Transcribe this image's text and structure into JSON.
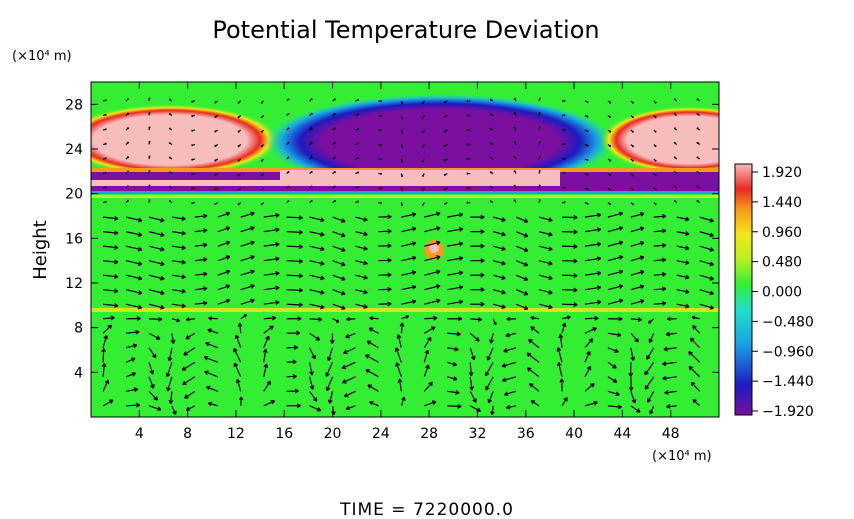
{
  "chart_data": {
    "type": "heatmap",
    "title": "Potential Temperature Deviation",
    "xlabel": "",
    "ylabel": "Height",
    "x_unit": "(×10⁴ m)",
    "y_unit": "(×10⁴ m)",
    "xlim": [
      0,
      52
    ],
    "ylim": [
      0,
      30
    ],
    "x_ticks": [
      4,
      8,
      12,
      16,
      20,
      24,
      28,
      32,
      36,
      40,
      44,
      48
    ],
    "y_ticks": [
      4,
      8,
      12,
      16,
      20,
      24,
      28
    ],
    "x_tick_labels": [
      "4",
      "8",
      "12",
      "16",
      "20",
      "24",
      "28",
      "32",
      "36",
      "40",
      "44",
      "48"
    ],
    "y_tick_labels": [
      "4",
      "8",
      "12",
      "16",
      "20",
      "24",
      "28"
    ],
    "colorbar": {
      "min": -1.92,
      "max": 1.92,
      "labels": [
        "1.920",
        "1.440",
        "0.960",
        "0.480",
        "0.000",
        "−0.480",
        "−0.960",
        "−1.440",
        "−1.920"
      ],
      "colormap": [
        "#7a0fa0",
        "#1c1cbf",
        "#1aa0e6",
        "#20e0c8",
        "#33ee33",
        "#b8f020",
        "#f5e619",
        "#f59a1a",
        "#e82a20",
        "#f7bcbc"
      ]
    },
    "features": [
      {
        "kind": "positive-anomaly",
        "x_range": [
          0,
          14
        ],
        "y_range": [
          23,
          27
        ],
        "value": 1.9
      },
      {
        "kind": "negative-anomaly",
        "x_range": [
          19,
          38
        ],
        "y_range": [
          22,
          28
        ],
        "value": -1.9
      },
      {
        "kind": "positive-anomaly",
        "x_range": [
          43,
          52
        ],
        "y_range": [
          23,
          27
        ],
        "value": 1.9
      },
      {
        "kind": "layer-mixed",
        "x_range": [
          0,
          52
        ],
        "y_range": [
          19.5,
          22.5
        ],
        "value": 0
      },
      {
        "kind": "thin-positive-layer",
        "x_range": [
          0,
          52
        ],
        "y_range": [
          9.2,
          9.8
        ],
        "value": 0.9
      },
      {
        "kind": "local-anomaly",
        "x": 28.5,
        "y": 14.5,
        "value": 1.4
      }
    ],
    "vectors": "wind vector field overlay",
    "grid": false,
    "legend": "colorbar-right"
  },
  "footer": {
    "time_label": "TIME  =  7220000.0"
  }
}
